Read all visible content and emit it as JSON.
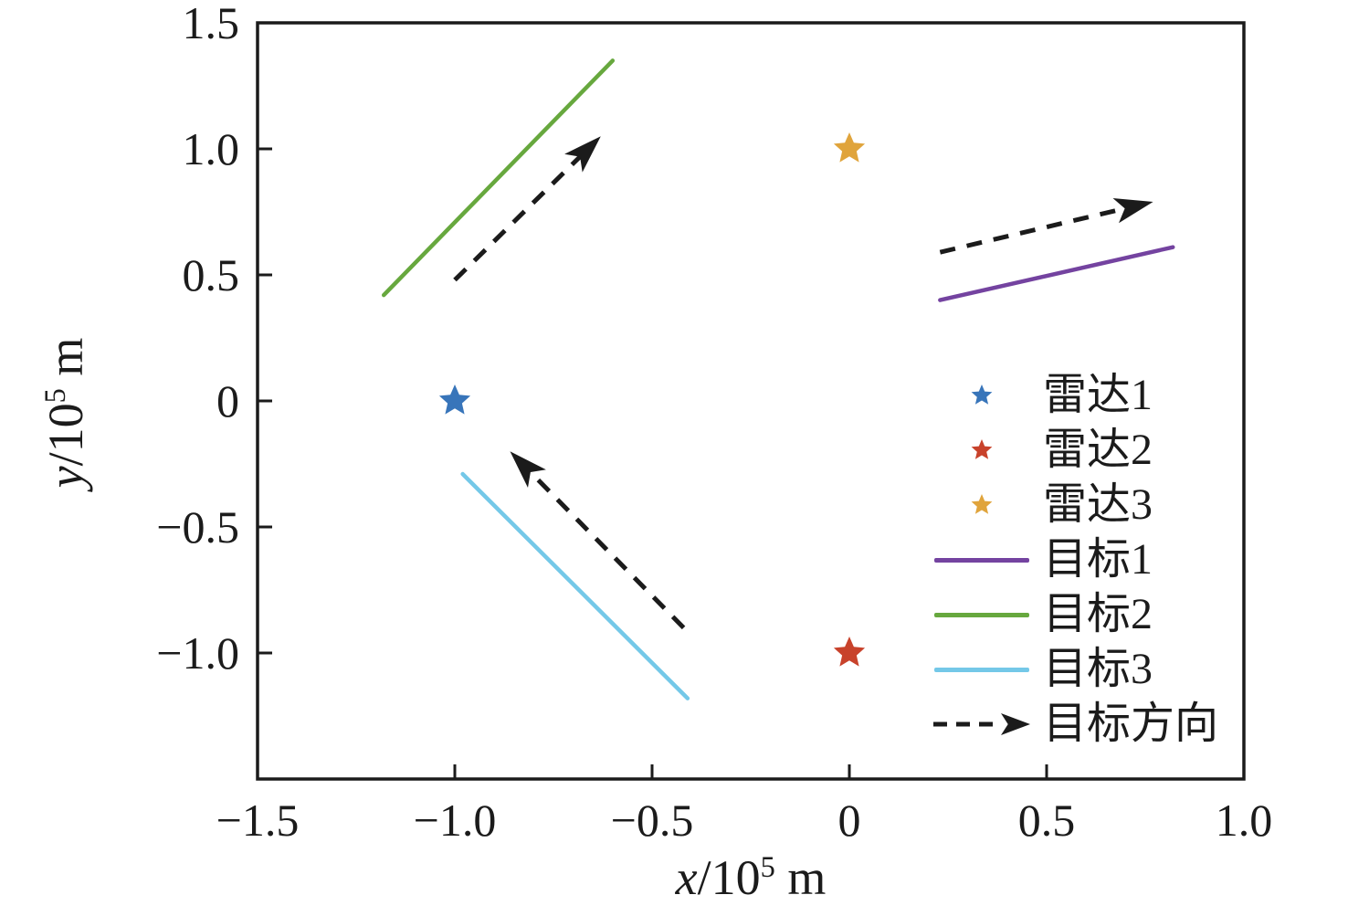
{
  "figure": {
    "background": "#ffffff",
    "axis_color": "#1b1b1b"
  },
  "chart_data": {
    "type": "scatter",
    "title": "",
    "xlabel": {
      "var": "x",
      "pre": "/10",
      "sup": "5",
      "post": " m"
    },
    "ylabel": {
      "var": "y",
      "pre": "/10",
      "sup": "5",
      "post": " m"
    },
    "xlim": [
      -1.5,
      1.0
    ],
    "ylim": [
      -1.5,
      1.5
    ],
    "grid": false,
    "box": true,
    "ticks_direction": "in",
    "xticks": [
      {
        "v": -1.5,
        "label": "−1.5"
      },
      {
        "v": -1.0,
        "label": "−1.0"
      },
      {
        "v": -0.5,
        "label": "−0.5"
      },
      {
        "v": 0,
        "label": "0"
      },
      {
        "v": 0.5,
        "label": "0.5"
      },
      {
        "v": 1.0,
        "label": "1.0"
      }
    ],
    "yticks": [
      {
        "v": 1.5,
        "label": "1.5"
      },
      {
        "v": 1.0,
        "label": "1.0"
      },
      {
        "v": 0.5,
        "label": "0.5"
      },
      {
        "v": 0,
        "label": "0"
      },
      {
        "v": -0.5,
        "label": "−0.5"
      },
      {
        "v": -1.0,
        "label": "−1.0"
      }
    ],
    "radars": [
      {
        "key": "radar-1",
        "label": "雷达1",
        "color": "#3875BA",
        "pos": [
          -1.0,
          0.0
        ]
      },
      {
        "key": "radar-2",
        "label": "雷达2",
        "color": "#C8422B",
        "pos": [
          0.0,
          -1.0
        ]
      },
      {
        "key": "radar-3",
        "label": "雷达3",
        "color": "#E0A43C",
        "pos": [
          0.0,
          1.0
        ]
      }
    ],
    "targets": [
      {
        "key": "target-1",
        "label": "目标1",
        "color": "#7443A0",
        "from": [
          0.23,
          0.4
        ],
        "to": [
          0.82,
          0.61
        ]
      },
      {
        "key": "target-2",
        "label": "目标2",
        "color": "#67A83E",
        "from": [
          -1.18,
          0.42
        ],
        "to": [
          -0.6,
          1.35
        ]
      },
      {
        "key": "target-3",
        "label": "目标3",
        "color": "#74C8E8",
        "from": [
          -0.98,
          -0.29
        ],
        "to": [
          -0.41,
          -1.18
        ]
      }
    ],
    "direction_arrows": [
      {
        "key": "arrow-target-2",
        "for": "目标2",
        "from": [
          -1.0,
          0.48
        ],
        "to": [
          -0.63,
          1.05
        ]
      },
      {
        "key": "arrow-target-1",
        "for": "目标1",
        "from": [
          0.23,
          0.59
        ],
        "to": [
          0.77,
          0.79
        ]
      },
      {
        "key": "arrow-target-3",
        "for": "目标3",
        "from": [
          -0.42,
          -0.9
        ],
        "to": [
          -0.86,
          -0.2
        ]
      }
    ],
    "arrow_style": {
      "color": "#1b1b1b",
      "dash": [
        17,
        13
      ]
    },
    "legend": {
      "position": "right-middle",
      "frame": false,
      "entries": [
        {
          "key": "radar-1",
          "label": "雷达1",
          "marker": "star",
          "color": "#3875BA"
        },
        {
          "key": "radar-2",
          "label": "雷达2",
          "marker": "star",
          "color": "#C8422B"
        },
        {
          "key": "radar-3",
          "label": "雷达3",
          "marker": "star",
          "color": "#E0A43C"
        },
        {
          "key": "target-1",
          "label": "目标1",
          "marker": "line",
          "color": "#7443A0"
        },
        {
          "key": "target-2",
          "label": "目标2",
          "marker": "line",
          "color": "#67A83E"
        },
        {
          "key": "target-3",
          "label": "目标3",
          "marker": "line",
          "color": "#74C8E8"
        },
        {
          "key": "target-direction",
          "label": "目标方向",
          "marker": "dashed-arrow",
          "color": "#1b1b1b"
        }
      ]
    }
  }
}
